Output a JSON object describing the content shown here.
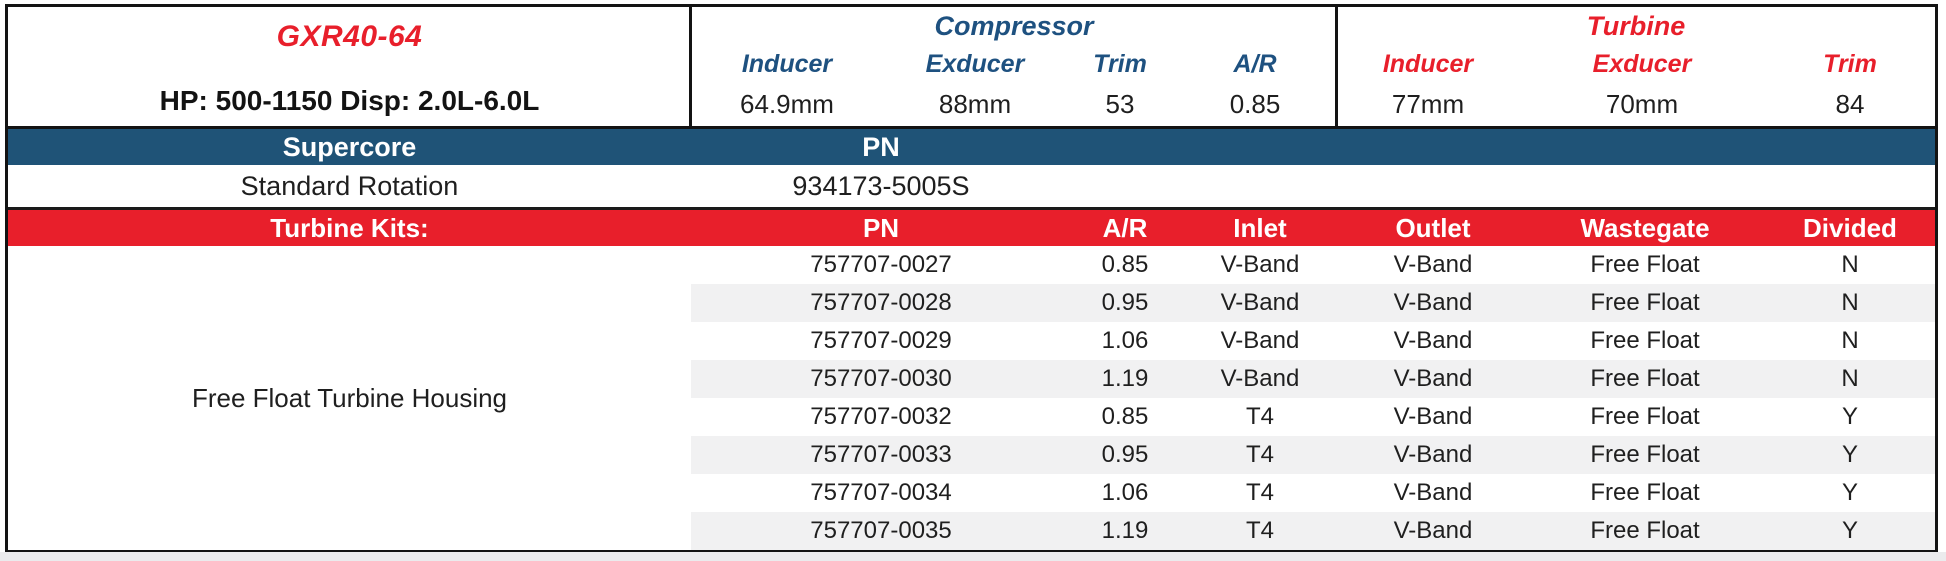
{
  "product": {
    "model": "GXR40-64",
    "hp_disp": "HP: 500-1150 Disp: 2.0L-6.0L"
  },
  "compressor": {
    "title": "Compressor",
    "headers": [
      "Inducer",
      "Exducer",
      "Trim",
      "A/R"
    ],
    "values": [
      "64.9mm",
      "88mm",
      "53",
      "0.85"
    ]
  },
  "turbine": {
    "title": "Turbine",
    "headers": [
      "Inducer",
      "Exducer",
      "Trim"
    ],
    "values": [
      "77mm",
      "70mm",
      "84"
    ]
  },
  "supercore": {
    "section_label": "Supercore",
    "pn_header": "PN",
    "row": {
      "label": "Standard Rotation",
      "pn": "934173-5005S"
    }
  },
  "turbine_kits": {
    "section_label": "Turbine Kits:",
    "headers": {
      "pn": "PN",
      "ar": "A/R",
      "inlet": "Inlet",
      "outlet": "Outlet",
      "wastegate": "Wastegate",
      "divided": "Divided"
    },
    "group_label": "Free Float Turbine Housing",
    "rows": [
      {
        "pn": "757707-0027",
        "ar": "0.85",
        "inlet": "V-Band",
        "outlet": "V-Band",
        "wastegate": "Free Float",
        "divided": "N"
      },
      {
        "pn": "757707-0028",
        "ar": "0.95",
        "inlet": "V-Band",
        "outlet": "V-Band",
        "wastegate": "Free Float",
        "divided": "N"
      },
      {
        "pn": "757707-0029",
        "ar": "1.06",
        "inlet": "V-Band",
        "outlet": "V-Band",
        "wastegate": "Free Float",
        "divided": "N"
      },
      {
        "pn": "757707-0030",
        "ar": "1.19",
        "inlet": "V-Band",
        "outlet": "V-Band",
        "wastegate": "Free Float",
        "divided": "N"
      },
      {
        "pn": "757707-0032",
        "ar": "0.85",
        "inlet": "T4",
        "outlet": "V-Band",
        "wastegate": "Free Float",
        "divided": "Y"
      },
      {
        "pn": "757707-0033",
        "ar": "0.95",
        "inlet": "T4",
        "outlet": "V-Band",
        "wastegate": "Free Float",
        "divided": "Y"
      },
      {
        "pn": "757707-0034",
        "ar": "1.06",
        "inlet": "T4",
        "outlet": "V-Band",
        "wastegate": "Free Float",
        "divided": "Y"
      },
      {
        "pn": "757707-0035",
        "ar": "1.19",
        "inlet": "T4",
        "outlet": "V-Band",
        "wastegate": "Free Float",
        "divided": "Y"
      }
    ]
  },
  "colors": {
    "blue_bar": "#1f5377",
    "red_bar": "#e81f2b",
    "blue_text": "#1e5180",
    "red_text": "#e81f2b",
    "stripe": "#f1f1f2",
    "border": "#131313"
  }
}
